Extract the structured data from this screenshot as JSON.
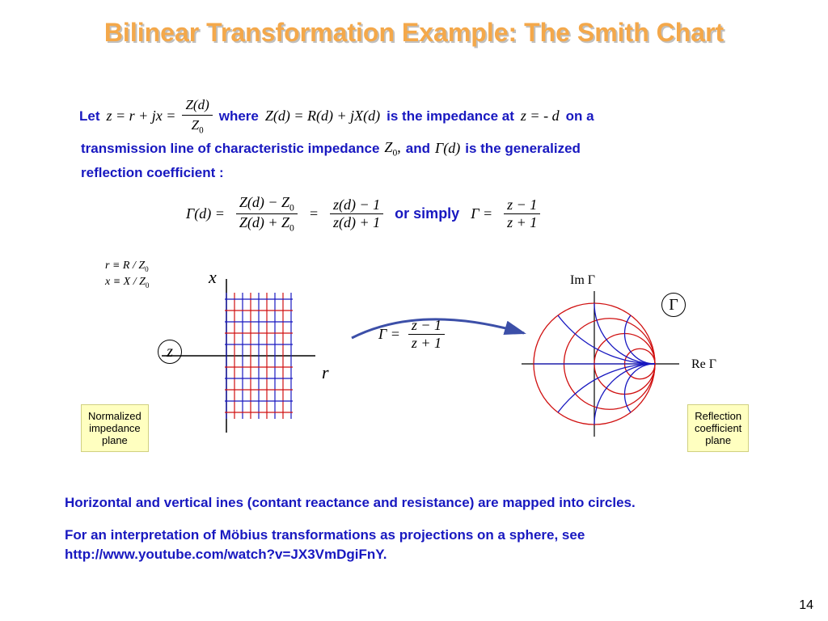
{
  "title": "Bilinear Transformation Example: The Smith Chart",
  "colors": {
    "title_fill": "#f4a84a",
    "title_shadow": "#c0c0c0",
    "body_text": "#1818c0",
    "note_bg": "#ffffc0",
    "red_line": "#d01010",
    "blue_line": "#1818c0",
    "arrow": "#3c4fa8"
  },
  "line1": {
    "let": "Let",
    "eq1_a": "z = r + jx = ",
    "eq1_num": "Z(d)",
    "eq1_den": "Z",
    "eq1_den_sub": "0",
    "where": "where",
    "eq2": "Z(d) = R(d) + jX(d)",
    "tail": "is the impedance at",
    "eq3": "z = - d",
    "tail2": "on a"
  },
  "line2": {
    "a": "transmission line of characteristic impedance",
    "z0": "Z",
    "z0sub": "0",
    "comma": ",",
    "b": "and",
    "gamma": "Γ(d)",
    "c": "is the generalized"
  },
  "line3": "reflection coefficient :",
  "center_eq": {
    "gd": "Γ(d)   =",
    "f1_num": "Z(d) − Z",
    "f1_num_sub": "0",
    "f1_den": "Z(d) + Z",
    "f1_den_sub": "0",
    "eq": "=",
    "f2_num": "z(d) − 1",
    "f2_den": "z(d) + 1",
    "or": "or simply",
    "g": "Γ   =",
    "f3_num": "z − 1",
    "f3_den": "z + 1"
  },
  "small_defs": {
    "l1": "r ≡ R / Z",
    "l1sub": "0",
    "l2": "x ≡ X / Z",
    "l2sub": "0"
  },
  "left_plot": {
    "x_label": "x",
    "r_label": "r",
    "z_label": "z",
    "note": "Normalized\nimpedance\nplane",
    "vlines_blue_x": [
      0,
      20,
      40,
      60,
      80
    ],
    "vlines_red_x": [
      10,
      30,
      50,
      70
    ],
    "hlines_y": [
      -70,
      -56,
      -42,
      -28,
      -14,
      14,
      28,
      42,
      56,
      70
    ],
    "axis_color": "#000000",
    "blue": "#1818c0",
    "red": "#d01010"
  },
  "mapping": {
    "g": "Γ   =",
    "num": "z − 1",
    "den": "z + 1"
  },
  "right_plot": {
    "im_label": "Im Γ",
    "re_label": "Re Γ",
    "gamma_label": "Γ",
    "note": "Reflection\ncoefficient\nplane",
    "radius": 75,
    "r_circles": [
      0,
      0.333,
      1,
      3
    ],
    "x_arcs": [
      0.5,
      1,
      2
    ],
    "red": "#d01010",
    "blue": "#1818c0"
  },
  "bottom1": "Horizontal and vertical ines (contant reactance and resistance) are mapped into circles.",
  "bottom2": "For an interpretation of Möbius transformations as projections on a sphere, see http://www.youtube.com/watch?v=JX3VmDgiFnY.",
  "page": "14"
}
